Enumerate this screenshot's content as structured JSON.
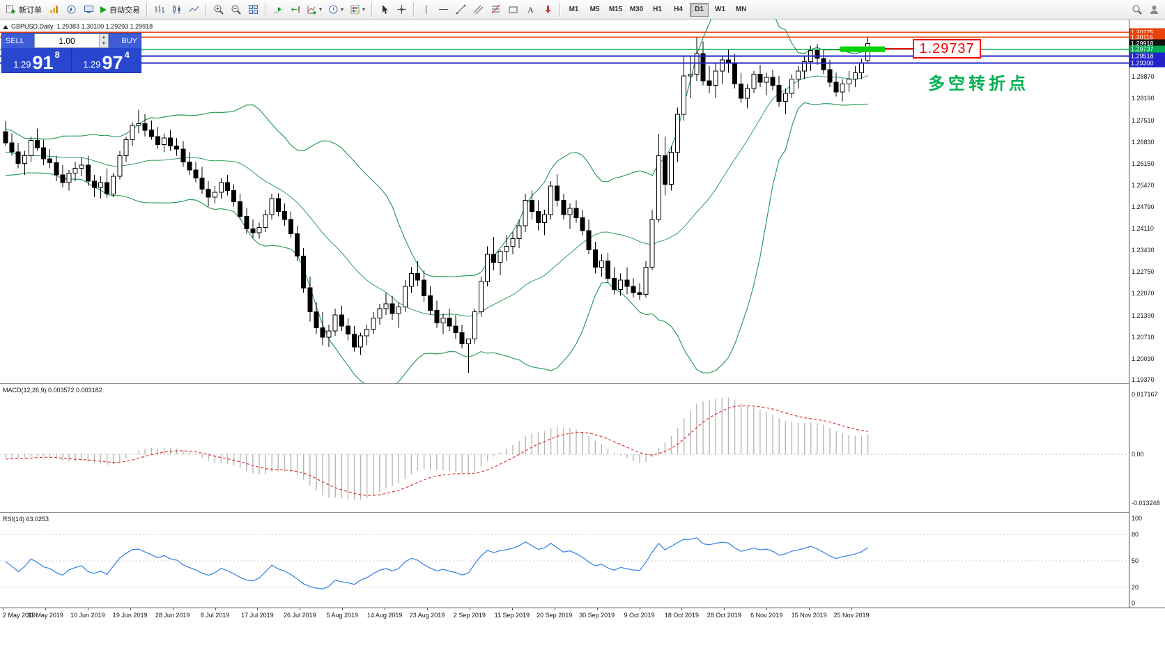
{
  "toolbar": {
    "new_order": "新订单",
    "auto_trading": "自动交易",
    "timeframes": [
      "M1",
      "M5",
      "M15",
      "M30",
      "H1",
      "H4",
      "D1",
      "W1",
      "MN"
    ],
    "active_timeframe": "D1"
  },
  "trade_panel": {
    "sell_label": "SELL",
    "buy_label": "BUY",
    "volume": "1.00",
    "sell": {
      "prefix": "1.29",
      "big": "91",
      "sup": "8"
    },
    "buy": {
      "prefix": "1.29",
      "big": "97",
      "sup": "4"
    }
  },
  "chart": {
    "symbol": "GBPUSD,Daily",
    "ohlc_text": "1.29383 1.30100 1.29293 1.29918",
    "callout": "1.29737",
    "annotation": "多空转折点",
    "bollinger_color": "#2e9e5b",
    "axis_labels": [
      "1.28870",
      "1.28190",
      "1.27510",
      "1.26830",
      "1.26150",
      "1.25470",
      "1.24790",
      "1.24110",
      "1.23430",
      "1.22750",
      "1.22070",
      "1.21390",
      "1.20710",
      "1.20030",
      "1.19370"
    ],
    "tags": [
      {
        "text": "1.30275",
        "bg": "#e8430a"
      },
      {
        "text": "1.30116",
        "bg": "#e8430a"
      },
      {
        "text": "1.29918",
        "bg": "#111111"
      },
      {
        "text": "1.29737",
        "bg": "#00a84f"
      },
      {
        "text": "1.29518",
        "bg": "#2323cc"
      },
      {
        "text": "1.29300",
        "bg": "#2323cc"
      }
    ],
    "hlines": [
      {
        "price": 1.30275,
        "color": "#e8430a",
        "width": 1.5
      },
      {
        "price": 1.30116,
        "color": "#e8430a",
        "width": 1.5
      },
      {
        "price": 1.29737,
        "color": "#00a84f",
        "width": 1.5
      },
      {
        "price": 1.29518,
        "color": "#2323cc",
        "width": 2
      },
      {
        "price": 1.293,
        "color": "#2323cc",
        "width": 2
      }
    ],
    "highlight_rect": {
      "price": 1.29737,
      "color": "#00d300"
    }
  },
  "macd": {
    "label": "MACD(12,26,9) 0.003572 0.003182",
    "axis_top": "0.017167",
    "axis_zero": "0.00",
    "axis_bottom": "-0.013248",
    "histogram_color": "#b6b6b6",
    "signal_color": "#e03030"
  },
  "rsi": {
    "label": "RSI(14) 63.0253",
    "axis": [
      "100",
      "80",
      "50",
      "20",
      "0"
    ],
    "levels": [
      80,
      50,
      20
    ],
    "line_color": "#3f86e8"
  },
  "time_axis": [
    "2 May 2019",
    "31 May 2019",
    "10 Jun 2019",
    "19 Jun 2019",
    "28 Jun 2019",
    "8 Jul 2019",
    "17 Jul 2019",
    "26 Jul 2019",
    "5 Aug 2019",
    "14 Aug 2019",
    "23 Aug 2019",
    "2 Sep 2019",
    "11 Sep 2019",
    "20 Sep 2019",
    "30 Sep 2019",
    "9 Oct 2019",
    "18 Oct 2019",
    "28 Oct 2019",
    "6 Nov 2019",
    "15 Nov 2019",
    "25 Nov 2019"
  ],
  "chart_data": {
    "type": "candlestick",
    "symbol": "GBPUSD",
    "timeframe": "Daily",
    "indicators": {
      "bollinger": {
        "period": 20,
        "deviation": 2
      },
      "macd": {
        "fast": 12,
        "slow": 26,
        "signal": 9
      },
      "rsi": {
        "period": 14
      }
    },
    "history_closes": [
      1.27,
      1.272,
      1.271,
      1.269,
      1.267,
      1.265,
      1.263,
      1.261,
      1.26,
      1.259,
      1.26,
      1.262,
      1.264,
      1.266,
      1.267,
      1.266,
      1.265,
      1.264,
      1.263
    ],
    "candles": [
      [
        1.2715,
        1.2748,
        1.267,
        1.268
      ],
      [
        1.268,
        1.271,
        1.264,
        1.2652
      ],
      [
        1.2652,
        1.268,
        1.26,
        1.2615
      ],
      [
        1.2615,
        1.2655,
        1.258,
        1.264
      ],
      [
        1.264,
        1.27,
        1.262,
        1.2688
      ],
      [
        1.2688,
        1.2725,
        1.2655,
        1.2665
      ],
      [
        1.2665,
        1.269,
        1.261,
        1.263
      ],
      [
        1.263,
        1.266,
        1.26,
        1.2618
      ],
      [
        1.2618,
        1.264,
        1.256,
        1.258
      ],
      [
        1.258,
        1.261,
        1.254,
        1.2555
      ],
      [
        1.2555,
        1.2595,
        1.253,
        1.2585
      ],
      [
        1.2585,
        1.262,
        1.256,
        1.26
      ],
      [
        1.26,
        1.2635,
        1.2575,
        1.261
      ],
      [
        1.261,
        1.264,
        1.2545,
        1.256
      ],
      [
        1.256,
        1.258,
        1.251,
        1.254
      ],
      [
        1.254,
        1.2575,
        1.2505,
        1.2555
      ],
      [
        1.2555,
        1.26,
        1.2506,
        1.252
      ],
      [
        1.252,
        1.2585,
        1.251,
        1.2575
      ],
      [
        1.2575,
        1.2655,
        1.2565,
        1.264
      ],
      [
        1.264,
        1.27,
        1.262,
        1.269
      ],
      [
        1.269,
        1.2745,
        1.267,
        1.2735
      ],
      [
        1.2735,
        1.2784,
        1.271,
        1.274
      ],
      [
        1.274,
        1.277,
        1.27,
        1.272
      ],
      [
        1.272,
        1.275,
        1.269,
        1.27
      ],
      [
        1.27,
        1.273,
        1.2662,
        1.2675
      ],
      [
        1.2675,
        1.271,
        1.265,
        1.2695
      ],
      [
        1.2695,
        1.272,
        1.2655,
        1.267
      ],
      [
        1.267,
        1.2695,
        1.264,
        1.266
      ],
      [
        1.266,
        1.2685,
        1.2605,
        1.262
      ],
      [
        1.262,
        1.265,
        1.258,
        1.2595
      ],
      [
        1.2595,
        1.262,
        1.2557,
        1.257
      ],
      [
        1.257,
        1.2605,
        1.252,
        1.2535
      ],
      [
        1.2535,
        1.256,
        1.248,
        1.251
      ],
      [
        1.251,
        1.2545,
        1.249,
        1.2525
      ],
      [
        1.2525,
        1.257,
        1.2505,
        1.2555
      ],
      [
        1.2555,
        1.258,
        1.2515,
        1.253
      ],
      [
        1.253,
        1.255,
        1.248,
        1.2495
      ],
      [
        1.2495,
        1.252,
        1.2439,
        1.245
      ],
      [
        1.245,
        1.2475,
        1.2395,
        1.241
      ],
      [
        1.241,
        1.244,
        1.2382,
        1.2398
      ],
      [
        1.2398,
        1.243,
        1.238,
        1.2415
      ],
      [
        1.2415,
        1.247,
        1.24,
        1.2455
      ],
      [
        1.2455,
        1.252,
        1.244,
        1.2505
      ],
      [
        1.2505,
        1.2522,
        1.245,
        1.2465
      ],
      [
        1.2465,
        1.249,
        1.242,
        1.244
      ],
      [
        1.244,
        1.2465,
        1.2382,
        1.2395
      ],
      [
        1.2395,
        1.242,
        1.231,
        1.2325
      ],
      [
        1.2325,
        1.235,
        1.221,
        1.2225
      ],
      [
        1.2225,
        1.226,
        1.212,
        1.215
      ],
      [
        1.215,
        1.218,
        1.208,
        1.21
      ],
      [
        1.21,
        1.215,
        1.2045,
        1.207
      ],
      [
        1.207,
        1.211,
        1.204,
        1.209
      ],
      [
        1.209,
        1.216,
        1.2075,
        1.214
      ],
      [
        1.214,
        1.217,
        1.209,
        1.2105
      ],
      [
        1.2105,
        1.213,
        1.206,
        1.208
      ],
      [
        1.208,
        1.2105,
        1.2025,
        1.204
      ],
      [
        1.204,
        1.2085,
        1.2015,
        1.2075
      ],
      [
        1.2075,
        1.211,
        1.2045,
        1.2095
      ],
      [
        1.2095,
        1.215,
        1.208,
        1.213
      ],
      [
        1.213,
        1.2175,
        1.211,
        1.216
      ],
      [
        1.216,
        1.221,
        1.214,
        1.2175
      ],
      [
        1.2175,
        1.22,
        1.2125,
        1.2145
      ],
      [
        1.2145,
        1.218,
        1.21,
        1.2165
      ],
      [
        1.2165,
        1.225,
        1.215,
        1.223
      ],
      [
        1.223,
        1.229,
        1.221,
        1.227
      ],
      [
        1.227,
        1.231,
        1.223,
        1.225
      ],
      [
        1.225,
        1.228,
        1.218,
        1.22
      ],
      [
        1.22,
        1.223,
        1.214,
        1.2155
      ],
      [
        1.2155,
        1.2185,
        1.21,
        1.2115
      ],
      [
        1.2115,
        1.2145,
        1.208,
        1.213
      ],
      [
        1.213,
        1.216,
        1.209,
        1.2105
      ],
      [
        1.2105,
        1.214,
        1.2065,
        1.2085
      ],
      [
        1.2085,
        1.211,
        1.2035,
        1.205
      ],
      [
        1.205,
        1.2065,
        1.1959,
        1.2065
      ],
      [
        1.2065,
        1.216,
        1.205,
        1.215
      ],
      [
        1.215,
        1.226,
        1.2135,
        1.2245
      ],
      [
        1.2245,
        1.2355,
        1.223,
        1.233
      ],
      [
        1.233,
        1.2385,
        1.228,
        1.2305
      ],
      [
        1.2305,
        1.2345,
        1.2265,
        1.234
      ],
      [
        1.234,
        1.239,
        1.231,
        1.2355
      ],
      [
        1.2355,
        1.24,
        1.233,
        1.238
      ],
      [
        1.238,
        1.244,
        1.235,
        1.242
      ],
      [
        1.242,
        1.252,
        1.24,
        1.25
      ],
      [
        1.25,
        1.253,
        1.244,
        1.2465
      ],
      [
        1.2465,
        1.25,
        1.2405,
        1.243
      ],
      [
        1.243,
        1.247,
        1.239,
        1.2455
      ],
      [
        1.2455,
        1.256,
        1.244,
        1.2545
      ],
      [
        1.2545,
        1.2582,
        1.248,
        1.25
      ],
      [
        1.25,
        1.252,
        1.244,
        1.2455
      ],
      [
        1.2455,
        1.249,
        1.241,
        1.2475
      ],
      [
        1.2475,
        1.25,
        1.243,
        1.2445
      ],
      [
        1.2445,
        1.247,
        1.239,
        1.2405
      ],
      [
        1.2405,
        1.244,
        1.233,
        1.2345
      ],
      [
        1.2345,
        1.237,
        1.227,
        1.229
      ],
      [
        1.229,
        1.233,
        1.226,
        1.231
      ],
      [
        1.231,
        1.2335,
        1.224,
        1.2255
      ],
      [
        1.2255,
        1.229,
        1.2205,
        1.222
      ],
      [
        1.222,
        1.227,
        1.22,
        1.225
      ],
      [
        1.225,
        1.229,
        1.2205,
        1.223
      ],
      [
        1.223,
        1.2255,
        1.2195,
        1.221
      ],
      [
        1.221,
        1.224,
        1.2187,
        1.2205
      ],
      [
        1.2205,
        1.231,
        1.2195,
        1.229
      ],
      [
        1.229,
        1.247,
        1.228,
        1.244
      ],
      [
        1.244,
        1.2708,
        1.243,
        1.264
      ],
      [
        1.264,
        1.27,
        1.2515,
        1.255
      ],
      [
        1.255,
        1.267,
        1.253,
        1.265
      ],
      [
        1.265,
        1.279,
        1.262,
        1.277
      ],
      [
        1.277,
        1.295,
        1.275,
        1.289
      ],
      [
        1.289,
        1.295,
        1.282,
        1.2895
      ],
      [
        1.2895,
        1.3012,
        1.2875,
        1.296
      ],
      [
        1.296,
        1.2998,
        1.286,
        1.2875
      ],
      [
        1.2875,
        1.292,
        1.2835,
        1.286
      ],
      [
        1.286,
        1.293,
        1.282,
        1.2905
      ],
      [
        1.2905,
        1.295,
        1.2865,
        1.294
      ],
      [
        1.294,
        1.2975,
        1.29,
        1.293
      ],
      [
        1.293,
        1.296,
        1.285,
        1.2865
      ],
      [
        1.2865,
        1.29,
        1.2805,
        1.282
      ],
      [
        1.282,
        1.2865,
        1.2788,
        1.285
      ],
      [
        1.285,
        1.2905,
        1.2835,
        1.2895
      ],
      [
        1.2895,
        1.2925,
        1.2855,
        1.287
      ],
      [
        1.287,
        1.29,
        1.283,
        1.2885
      ],
      [
        1.2885,
        1.291,
        1.2845,
        1.286
      ],
      [
        1.286,
        1.289,
        1.2794,
        1.281
      ],
      [
        1.281,
        1.285,
        1.277,
        1.2835
      ],
      [
        1.2835,
        1.2895,
        1.282,
        1.288
      ],
      [
        1.288,
        1.292,
        1.285,
        1.2905
      ],
      [
        1.2905,
        1.295,
        1.288,
        1.2935
      ],
      [
        1.2935,
        1.2985,
        1.2905,
        1.297
      ],
      [
        1.297,
        1.299,
        1.2925,
        1.2945
      ],
      [
        1.2945,
        1.2975,
        1.2895,
        1.291
      ],
      [
        1.291,
        1.294,
        1.2855,
        1.287
      ],
      [
        1.287,
        1.29,
        1.2825,
        1.284
      ],
      [
        1.284,
        1.288,
        1.281,
        1.2865
      ],
      [
        1.2865,
        1.2905,
        1.284,
        1.288
      ],
      [
        1.288,
        1.292,
        1.2855,
        1.29
      ],
      [
        1.29,
        1.2945,
        1.288,
        1.293
      ],
      [
        1.29383,
        1.301,
        1.29293,
        1.29918
      ]
    ]
  }
}
